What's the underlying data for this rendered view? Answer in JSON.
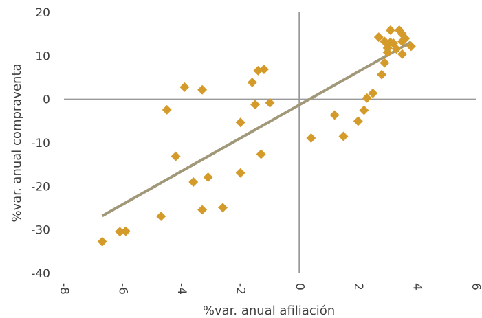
{
  "chart_data": {
    "type": "scatter",
    "title": "",
    "xlabel": "%var. anual afiliación",
    "ylabel": "%var. anual compraventa",
    "xlim": [
      -8,
      6
    ],
    "ylim": [
      -40,
      20
    ],
    "x_ticks": [
      -8,
      -6,
      -4,
      -2,
      0,
      2,
      4,
      6
    ],
    "y_ticks": [
      20,
      10,
      0,
      -10,
      -20,
      -30,
      -40
    ],
    "grid": false,
    "legend": "none",
    "marker": "diamond",
    "colors": {
      "points": "#D49B2B",
      "trendline": "#A09878",
      "axis": "#9A9A9A"
    },
    "series": [
      {
        "points": [
          [
            -6.7,
            -32.7
          ],
          [
            -6.1,
            -30.4
          ],
          [
            -5.9,
            -30.3
          ],
          [
            -4.7,
            -26.9
          ],
          [
            -4.5,
            -2.4
          ],
          [
            -4.2,
            -13.1
          ],
          [
            -3.9,
            2.8
          ],
          [
            -3.6,
            -19.0
          ],
          [
            -3.3,
            2.2
          ],
          [
            -3.3,
            -25.4
          ],
          [
            -3.1,
            -17.9
          ],
          [
            -2.6,
            -24.9
          ],
          [
            -2.0,
            -16.9
          ],
          [
            -2.0,
            -5.3
          ],
          [
            -1.6,
            3.9
          ],
          [
            -1.5,
            -1.2
          ],
          [
            -1.3,
            -12.6
          ],
          [
            -1.4,
            6.6
          ],
          [
            -1.2,
            6.9
          ],
          [
            -1.0,
            -0.8
          ],
          [
            0.4,
            -8.9
          ],
          [
            1.2,
            -3.6
          ],
          [
            1.5,
            -8.5
          ],
          [
            2.0,
            -5.0
          ],
          [
            2.2,
            -2.5
          ],
          [
            2.3,
            0.3
          ],
          [
            2.5,
            1.4
          ],
          [
            2.7,
            14.3
          ],
          [
            2.8,
            5.7
          ],
          [
            2.9,
            8.4
          ],
          [
            2.9,
            13.3
          ],
          [
            3.0,
            11.8
          ],
          [
            3.0,
            10.8
          ],
          [
            3.1,
            15.9
          ],
          [
            3.1,
            13.1
          ],
          [
            3.2,
            12.9
          ],
          [
            3.3,
            11.6
          ],
          [
            3.4,
            15.9
          ],
          [
            3.5,
            15.0
          ],
          [
            3.5,
            10.4
          ],
          [
            3.5,
            13.3
          ],
          [
            3.6,
            14.0
          ],
          [
            3.8,
            12.2
          ]
        ]
      }
    ],
    "trendline": {
      "x": [
        -6.7,
        3.8
      ],
      "y": [
        -26.8,
        13.2
      ]
    }
  }
}
